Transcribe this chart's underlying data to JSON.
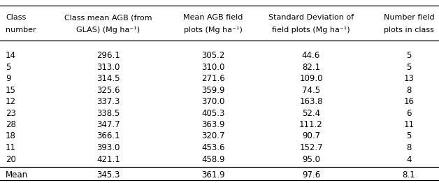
{
  "col_headers_line1": [
    "Class",
    "Class mean AGB (from",
    "Mean AGB field",
    "Standard Deviation of",
    "Number field"
  ],
  "col_headers_line2": [
    "number",
    "GLAS) (Mg ha⁻¹)",
    "plots (Mg ha⁻¹)",
    "field plots (Mg ha⁻¹)",
    "plots in class"
  ],
  "rows": [
    [
      "14",
      "296.1",
      "305.2",
      "44.6",
      "5"
    ],
    [
      "5",
      "313.0",
      "310.0",
      "82.1",
      "5"
    ],
    [
      "9",
      "314.5",
      "271.6",
      "109.0",
      "13"
    ],
    [
      "15",
      "325.6",
      "359.9",
      "74.5",
      "8"
    ],
    [
      "12",
      "337.3",
      "370.0",
      "163.8",
      "16"
    ],
    [
      "23",
      "338.5",
      "405.3",
      "52.4",
      "6"
    ],
    [
      "28",
      "347.7",
      "363.9",
      "111.2",
      "11"
    ],
    [
      "18",
      "366.1",
      "320.7",
      "90.7",
      "5"
    ],
    [
      "11",
      "393.0",
      "453.6",
      "152.7",
      "8"
    ],
    [
      "20",
      "421.1",
      "458.9",
      "95.0",
      "4"
    ]
  ],
  "mean_row": [
    "Mean",
    "345.3",
    "361.9",
    "97.6",
    "8.1"
  ],
  "col_x_inches": [
    0.08,
    1.55,
    3.05,
    4.45,
    5.85
  ],
  "col_align": [
    "left",
    "center",
    "center",
    "center",
    "center"
  ],
  "header_fontsize": 8.0,
  "body_fontsize": 8.5,
  "background_color": "#ffffff",
  "line_color": "#000000",
  "text_color": "#000000",
  "fig_width": 6.28,
  "fig_height": 2.62,
  "dpi": 100
}
